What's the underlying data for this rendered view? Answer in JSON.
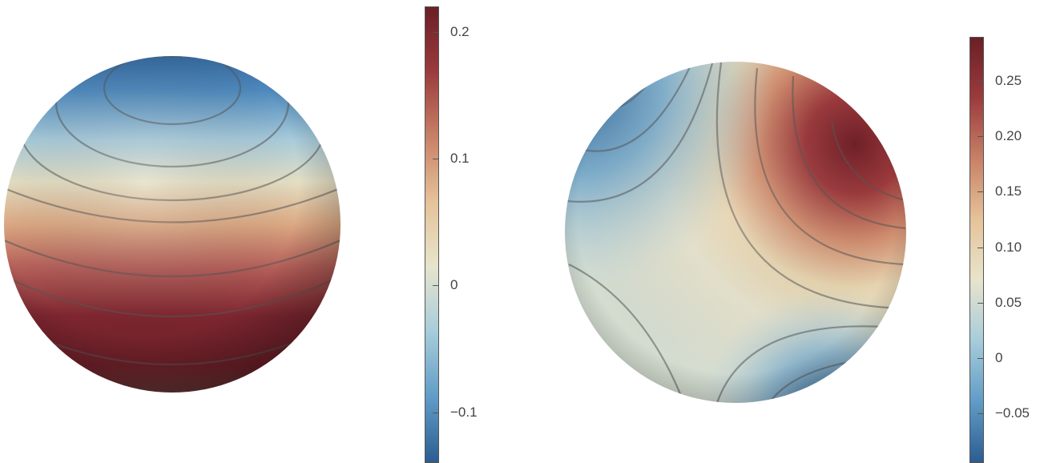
{
  "chart_data": [
    {
      "type": "heatmap",
      "colormap": [
        "#2b5d91",
        "#5f9bc6",
        "#a9cddb",
        "#e7e4cc",
        "#e6c39a",
        "#c98368",
        "#9b3a3d",
        "#6a1f26"
      ],
      "colorbar": {
        "range": [
          -0.14,
          0.22
        ],
        "ticks": [
          {
            "value": 0.2,
            "label": "0.2"
          },
          {
            "value": 0.1,
            "label": "0.1"
          },
          {
            "value": 0,
            "label": "0"
          },
          {
            "value": -0.1,
            "label": "−0.1"
          }
        ]
      }
    },
    {
      "type": "heatmap",
      "colormap": [
        "#2b5d91",
        "#5f9bc6",
        "#a9cddb",
        "#e7e4cc",
        "#e6c39a",
        "#c98368",
        "#9b3a3d",
        "#6a1f26"
      ],
      "colorbar": {
        "range": [
          -0.095,
          0.29
        ],
        "ticks": [
          {
            "value": 0.25,
            "label": "0.25"
          },
          {
            "value": 0.2,
            "label": "0.20"
          },
          {
            "value": 0.15,
            "label": "0.15"
          },
          {
            "value": 0.1,
            "label": "0.10"
          },
          {
            "value": 0.05,
            "label": "0.05"
          },
          {
            "value": 0,
            "label": "0"
          },
          {
            "value": -0.05,
            "label": "−0.05"
          }
        ]
      }
    }
  ]
}
